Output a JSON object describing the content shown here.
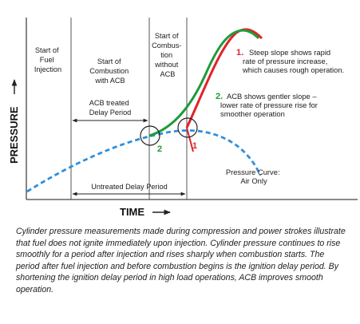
{
  "phases": {
    "start_fuel_injection": [
      "Start of",
      "Fuel",
      "Injection"
    ],
    "start_combustion_acb": [
      "Start of",
      "Combustion",
      "with ACB"
    ],
    "start_combustion_no_acb": [
      "Start of",
      "Combus-",
      "tion",
      "without",
      "ACB"
    ]
  },
  "delay_periods": {
    "acb_treated": [
      "ACB treated",
      "Delay Period"
    ],
    "untreated": "Untreated Delay  Period"
  },
  "annotations": {
    "one": {
      "number": "1.",
      "lines": [
        "Steep slope shows rapid",
        "rate of pressure increase,",
        "which causes rough operation."
      ],
      "color": "#e0232b"
    },
    "two": {
      "number": "2.",
      "lines": [
        "ACB shows gentler slope –",
        "lower rate of pressure rise for",
        "smoother operation"
      ],
      "color": "#1f9a3a"
    },
    "pressure_curve": [
      "Pressure Curve:",
      "Air Only"
    ]
  },
  "markers": {
    "two": "2",
    "one": "1"
  },
  "axes": {
    "y_label": "PRESSURE",
    "x_label": "TIME"
  },
  "colors": {
    "red": "#e0232b",
    "green": "#1f9a3a",
    "blue": "#2f8fdc",
    "gray_line": "#444444"
  },
  "caption": "Cylinder pressure measurements made during compression and power strokes illustrate that fuel does not ignite immediately upon injection. Cylinder pressure continues to rise smoothly for a period after injection and rises sharply when combustion starts. The period after fuel injection and before combustion begins is the ignition delay period. By shortening the ignition delay period in high load operations, ACB improves smooth operation."
}
